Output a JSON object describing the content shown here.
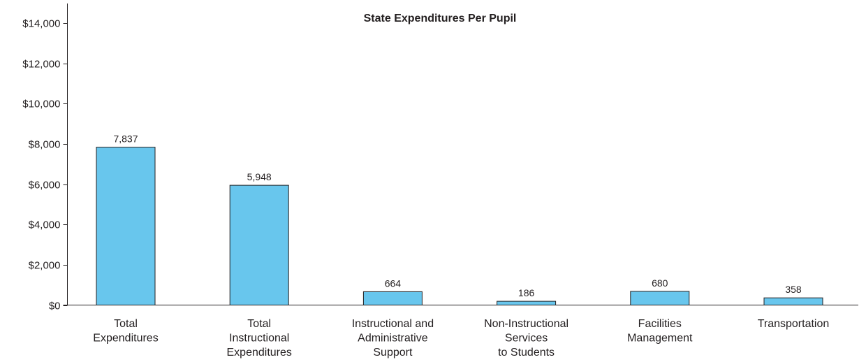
{
  "chart_data": {
    "type": "bar",
    "title": "State Expenditures Per Pupil",
    "xlabel": "",
    "ylabel": "",
    "ylim": [
      0,
      14000
    ],
    "y_ticks": [
      0,
      2000,
      4000,
      6000,
      8000,
      10000,
      12000,
      14000
    ],
    "y_tick_labels": [
      "$0",
      "$2,000",
      "$4,000",
      "$6,000",
      "$8,000",
      "$10,000",
      "$12,000",
      "$14,000"
    ],
    "categories": [
      [
        "Total",
        "Expenditures"
      ],
      [
        "Total",
        "Instructional",
        "Expenditures"
      ],
      [
        "Instructional and",
        "Administrative",
        "Support"
      ],
      [
        "Non-Instructional",
        "Services",
        "to Students"
      ],
      [
        "Facilities",
        "Management"
      ],
      [
        "Transportation"
      ]
    ],
    "values": [
      7837,
      5948,
      664,
      186,
      680,
      358
    ],
    "data_labels": [
      "7,837",
      "5,948",
      "664",
      "186",
      "680",
      "358"
    ],
    "grid": false,
    "legend": "none",
    "bar_color": "#68c6ed",
    "bar_stroke": "#231f20",
    "axis_color": "#231f20"
  }
}
